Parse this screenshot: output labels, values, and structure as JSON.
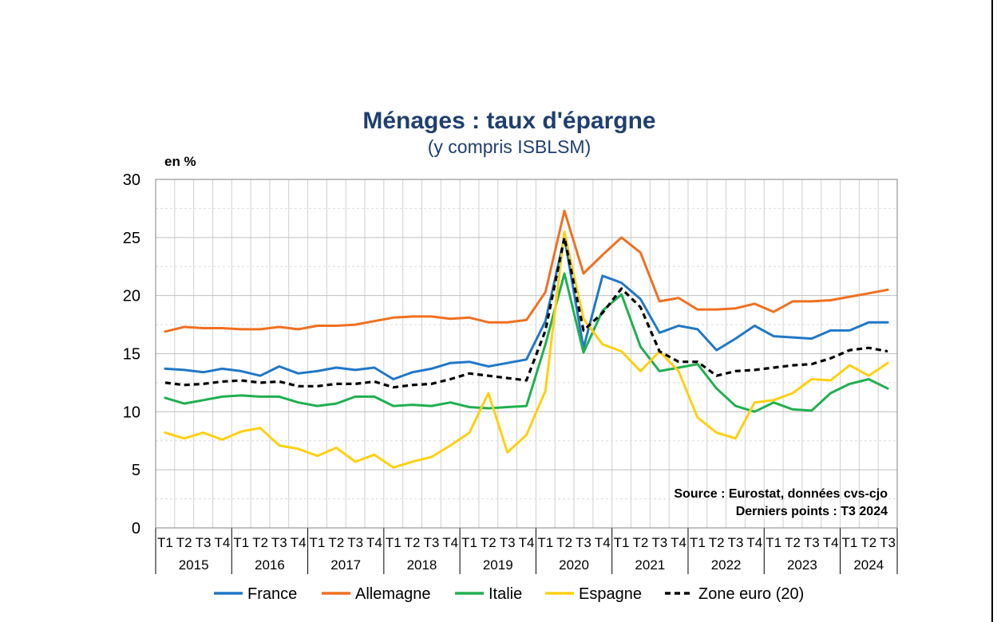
{
  "chart_data": {
    "type": "line",
    "title": "Ménages : taux d'épargne",
    "subtitle": "(y compris ISBLSM)",
    "ylabel": "en %",
    "ylim": [
      0,
      30
    ],
    "yticks": [
      0,
      5,
      10,
      15,
      20,
      25,
      30
    ],
    "grid": true,
    "years": [
      "2015",
      "2016",
      "2017",
      "2018",
      "2019",
      "2020",
      "2021",
      "2022",
      "2023",
      "2024"
    ],
    "quarter_labels": [
      "T1",
      "T2",
      "T3",
      "T4"
    ],
    "categories": [
      "T1 2015",
      "T2 2015",
      "T3 2015",
      "T4 2015",
      "T1 2016",
      "T2 2016",
      "T3 2016",
      "T4 2016",
      "T1 2017",
      "T2 2017",
      "T3 2017",
      "T4 2017",
      "T1 2018",
      "T2 2018",
      "T3 2018",
      "T4 2018",
      "T1 2019",
      "T2 2019",
      "T3 2019",
      "T4 2019",
      "T1 2020",
      "T2 2020",
      "T3 2020",
      "T4 2020",
      "T1 2021",
      "T2 2021",
      "T3 2021",
      "T4 2021",
      "T1 2022",
      "T2 2022",
      "T3 2022",
      "T4 2022",
      "T1 2023",
      "T2 2023",
      "T3 2023",
      "T4 2023",
      "T1 2024",
      "T2 2024",
      "T3 2024"
    ],
    "series": [
      {
        "name": "France",
        "color": "#2078c8",
        "dash": false,
        "values": [
          13.7,
          13.6,
          13.4,
          13.7,
          13.5,
          13.1,
          13.9,
          13.3,
          13.5,
          13.8,
          13.6,
          13.8,
          12.8,
          13.4,
          13.7,
          14.2,
          14.3,
          13.9,
          14.2,
          14.5,
          17.8,
          25.0,
          15.5,
          21.7,
          21.1,
          19.7,
          16.8,
          17.4,
          17.1,
          15.3,
          16.3,
          17.4,
          16.5,
          16.4,
          16.3,
          17.0,
          17.0,
          17.7,
          17.7
        ]
      },
      {
        "name": "Allemagne",
        "color": "#f07020",
        "dash": false,
        "values": [
          16.9,
          17.3,
          17.2,
          17.2,
          17.1,
          17.1,
          17.3,
          17.1,
          17.4,
          17.4,
          17.5,
          17.8,
          18.1,
          18.2,
          18.2,
          18.0,
          18.1,
          17.7,
          17.7,
          17.9,
          20.3,
          27.3,
          21.9,
          23.5,
          25.0,
          23.7,
          19.5,
          19.8,
          18.8,
          18.8,
          18.9,
          19.3,
          18.6,
          19.5,
          19.5,
          19.6,
          19.9,
          20.2,
          20.5
        ]
      },
      {
        "name": "Italie",
        "color": "#20b050",
        "dash": false,
        "values": [
          11.2,
          10.7,
          11.0,
          11.3,
          11.4,
          11.3,
          11.3,
          10.8,
          10.5,
          10.7,
          11.3,
          11.3,
          10.5,
          10.6,
          10.5,
          10.8,
          10.4,
          10.3,
          10.4,
          10.5,
          15.8,
          21.9,
          15.1,
          18.7,
          20.1,
          15.6,
          13.5,
          13.8,
          14.1,
          12.0,
          10.5,
          10.0,
          10.8,
          10.2,
          10.1,
          11.6,
          12.4,
          12.8,
          12.0
        ]
      },
      {
        "name": "Espagne",
        "color": "#ffd010",
        "dash": false,
        "values": [
          8.2,
          7.7,
          8.2,
          7.6,
          8.3,
          8.6,
          7.1,
          6.8,
          6.2,
          6.9,
          5.7,
          6.3,
          5.2,
          5.7,
          6.1,
          7.1,
          8.2,
          11.6,
          6.5,
          8.0,
          11.8,
          25.5,
          18.0,
          15.8,
          15.2,
          13.5,
          15.2,
          13.5,
          9.5,
          8.2,
          7.7,
          10.8,
          11.0,
          11.6,
          12.8,
          12.7,
          14.0,
          13.1,
          14.2
        ]
      },
      {
        "name": "Zone euro (20)",
        "color": "#000000",
        "dash": true,
        "values": [
          12.5,
          12.3,
          12.4,
          12.6,
          12.7,
          12.5,
          12.6,
          12.2,
          12.2,
          12.4,
          12.4,
          12.6,
          12.1,
          12.3,
          12.4,
          12.8,
          13.3,
          13.1,
          12.9,
          12.7,
          17.0,
          25.0,
          17.0,
          18.5,
          20.6,
          19.0,
          15.2,
          14.3,
          14.3,
          13.1,
          13.5,
          13.6,
          13.8,
          14.0,
          14.1,
          14.6,
          15.3,
          15.5,
          15.2
        ]
      }
    ],
    "source": "Source : Eurostat, données cvs-cjo",
    "last_points": "Derniers points : T3 2024"
  }
}
